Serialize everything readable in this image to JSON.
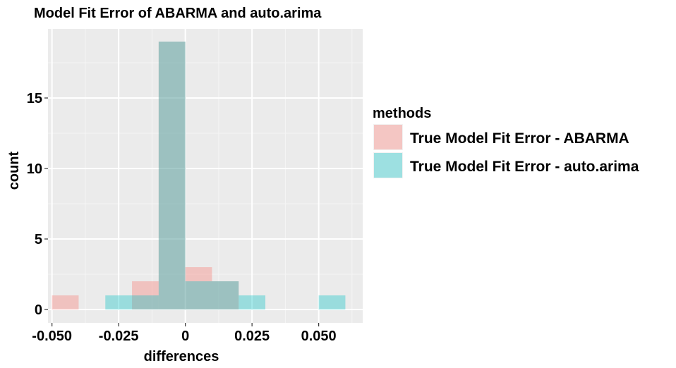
{
  "chart_data": {
    "type": "histogram",
    "title": "Model Fit Error of ABARMA and auto.arima",
    "xlabel": "differences",
    "ylabel": "count",
    "xlim": [
      -0.0515,
      0.0665
    ],
    "ylim": [
      -0.95,
      19.9
    ],
    "x_ticks": [
      -0.05,
      -0.025,
      0,
      0.025,
      0.05
    ],
    "x_tick_labels": [
      "-0.050",
      "-0.025",
      "0",
      "0.025",
      "0.050"
    ],
    "y_ticks": [
      0,
      5,
      10,
      15
    ],
    "y_tick_labels": [
      "0",
      "5",
      "10",
      "15"
    ],
    "grid": true,
    "legend": {
      "title": "methods",
      "position": "right"
    },
    "series": [
      {
        "name": "True Model Fit Error - ABARMA",
        "color": "#F8766D",
        "bins": [
          {
            "x0": -0.05,
            "x1": -0.04,
            "count": 1
          },
          {
            "x0": -0.02,
            "x1": -0.01,
            "count": 2
          },
          {
            "x0": -0.01,
            "x1": 0.0,
            "count": 19
          },
          {
            "x0": 0.0,
            "x1": 0.01,
            "count": 3
          },
          {
            "x0": 0.01,
            "x1": 0.02,
            "count": 2
          }
        ]
      },
      {
        "name": "True Model Fit Error - auto.arima",
        "color": "#00BFC4",
        "bins": [
          {
            "x0": -0.03,
            "x1": -0.01,
            "count": 1
          },
          {
            "x0": -0.01,
            "x1": 0.0,
            "count": 19
          },
          {
            "x0": 0.0,
            "x1": 0.01,
            "count": 2
          },
          {
            "x0": 0.01,
            "x1": 0.02,
            "count": 2
          },
          {
            "x0": 0.02,
            "x1": 0.03,
            "count": 1
          },
          {
            "x0": 0.05,
            "x1": 0.06,
            "count": 1
          }
        ]
      }
    ]
  }
}
